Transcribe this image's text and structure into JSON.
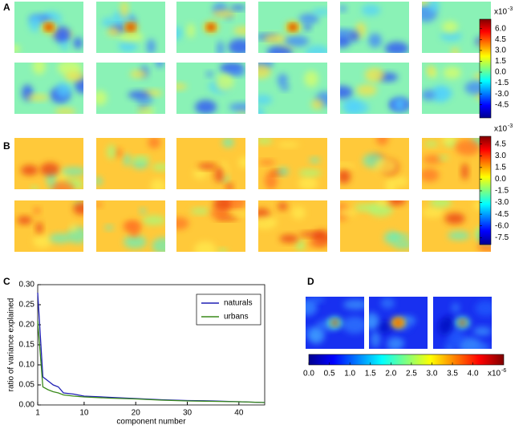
{
  "panels": [
    "A",
    "B",
    "C",
    "D"
  ],
  "chart_data": [
    {
      "type": "colorbar",
      "orient": "vertical",
      "lim": [
        -6.3,
        7.3
      ],
      "ticks": [
        {
          "value": 6,
          "label": "6.0"
        },
        {
          "value": 4.5,
          "label": "4.5"
        },
        {
          "value": 3,
          "label": "3.0"
        },
        {
          "value": 1.5,
          "label": "1.5"
        },
        {
          "value": 0,
          "label": "0.0"
        },
        {
          "value": -1.5,
          "label": "-1.5"
        },
        {
          "value": -3,
          "label": "-3.0"
        },
        {
          "value": -4.5,
          "label": "-4.5"
        }
      ],
      "exponent": {
        "base": "x10",
        "power": "-3"
      }
    },
    {
      "type": "colorbar",
      "orient": "vertical",
      "lim": [
        -8.4,
        5.5
      ],
      "ticks": [
        {
          "value": 4.5,
          "label": "4.5"
        },
        {
          "value": 3,
          "label": "3.0"
        },
        {
          "value": 1.5,
          "label": "1.5"
        },
        {
          "value": 0,
          "label": "0.0"
        },
        {
          "value": -1.5,
          "label": "-1.5"
        },
        {
          "value": -3,
          "label": "-3.0"
        },
        {
          "value": -4.5,
          "label": "-4.5"
        },
        {
          "value": -6,
          "label": "-6.0"
        },
        {
          "value": -7.5,
          "label": "-7.5"
        }
      ],
      "exponent": {
        "base": "x10",
        "power": "-3"
      }
    },
    {
      "type": "line",
      "xlabel": "component number",
      "ylabel": "ratio of variance explained",
      "x": [
        1,
        2,
        3,
        4,
        5,
        6,
        8,
        10,
        15,
        20,
        25,
        30,
        35,
        40,
        45
      ],
      "series": [
        {
          "name": "naturals",
          "color": "#1f1fb4",
          "values": [
            0.28,
            0.07,
            0.06,
            0.05,
            0.045,
            0.03,
            0.027,
            0.022,
            0.019,
            0.016,
            0.013,
            0.011,
            0.01,
            0.008,
            0.006
          ]
        },
        {
          "name": "urbans",
          "color": "#3a8a1a",
          "values": [
            0.21,
            0.045,
            0.038,
            0.033,
            0.03,
            0.025,
            0.022,
            0.02,
            0.017,
            0.015,
            0.012,
            0.01,
            0.009,
            0.008,
            0.006
          ]
        }
      ],
      "xlim": [
        1,
        45
      ],
      "ylim": [
        0,
        0.3
      ],
      "xticks": [
        1,
        10,
        20,
        30,
        40
      ],
      "yticks": [
        {
          "value": 0,
          "label": "0.00"
        },
        {
          "value": 0.05,
          "label": "0.05"
        },
        {
          "value": 0.1,
          "label": "0.10"
        },
        {
          "value": 0.15,
          "label": "0.15"
        },
        {
          "value": 0.2,
          "label": "0.20"
        },
        {
          "value": 0.25,
          "label": "0.25"
        },
        {
          "value": 0.3,
          "label": "0.30"
        }
      ],
      "legend": "upper right"
    },
    {
      "type": "colorbar",
      "orient": "horizontal",
      "lim": [
        0,
        4.75
      ],
      "ticks": [
        {
          "value": 0,
          "label": "0.0"
        },
        {
          "value": 0.5,
          "label": "0.5"
        },
        {
          "value": 1,
          "label": "1.0"
        },
        {
          "value": 1.5,
          "label": "1.5"
        },
        {
          "value": 2,
          "label": "2.0"
        },
        {
          "value": 2.5,
          "label": "2.5"
        },
        {
          "value": 3,
          "label": "3.0"
        },
        {
          "value": 3.5,
          "label": "3.5"
        },
        {
          "value": 4,
          "label": "4.0"
        }
      ],
      "exponent": {
        "base": "x10",
        "power": "-6"
      }
    }
  ]
}
